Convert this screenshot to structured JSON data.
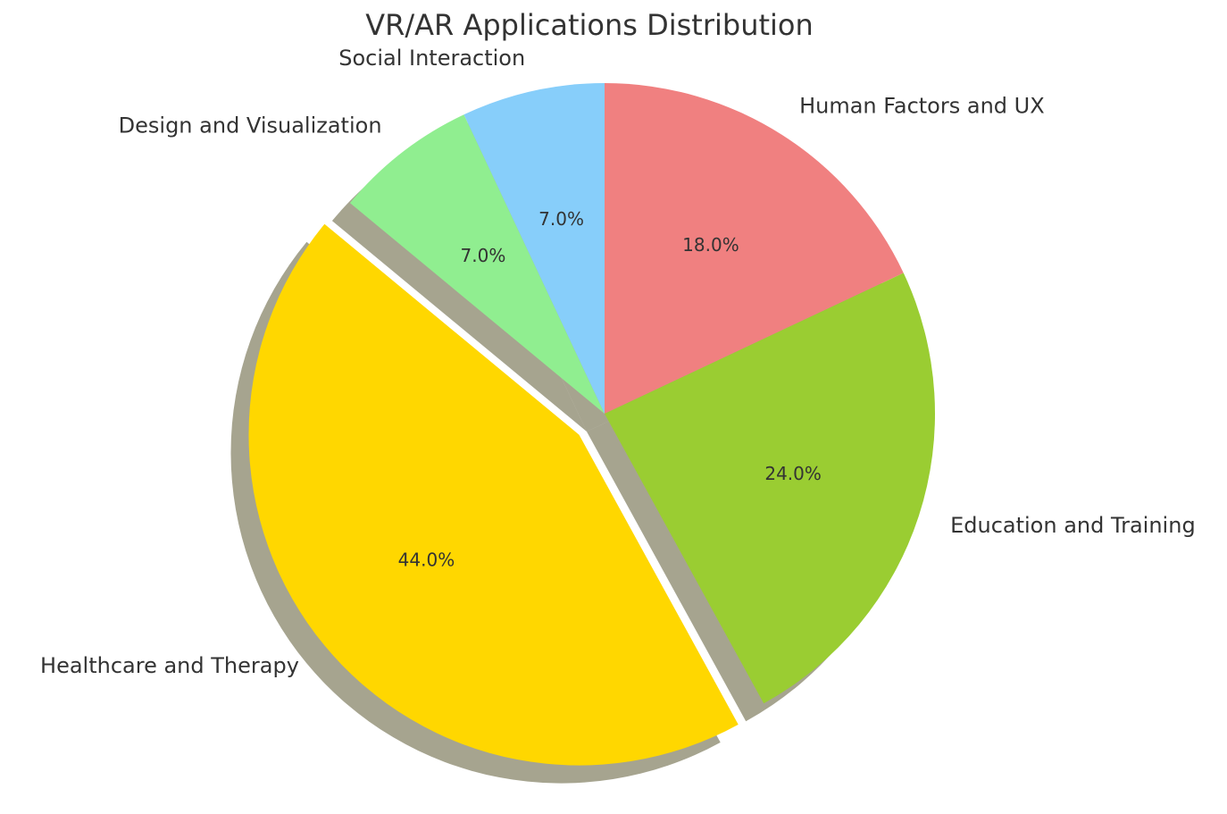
{
  "chart_data": {
    "type": "pie",
    "title": "VR/AR Applications Distribution",
    "categories": [
      "Human Factors and UX",
      "Education and Training",
      "Healthcare and Therapy",
      "Design and Visualization",
      "Social Interaction"
    ],
    "values": [
      18,
      24,
      44,
      7,
      7
    ],
    "value_labels": [
      "18.0%",
      "24.0%",
      "44.0%",
      "7.0%",
      "7.0%"
    ],
    "colors": [
      "#f08080",
      "#9acd32",
      "#ffd700",
      "#90ee90",
      "#87cefa"
    ],
    "explode": [
      0,
      0,
      0.1,
      0,
      0
    ],
    "shadow": true
  }
}
